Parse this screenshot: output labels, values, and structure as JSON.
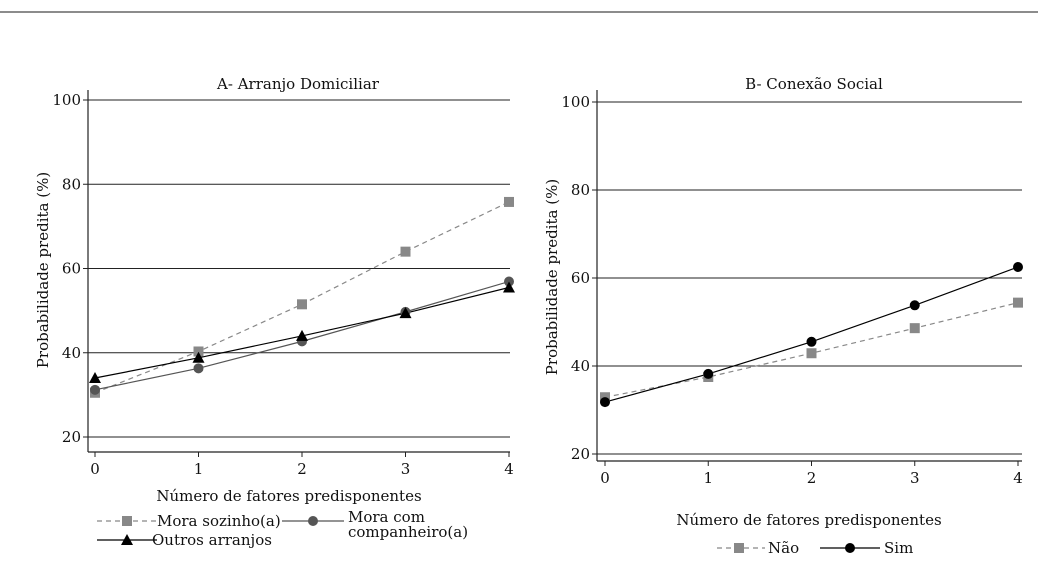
{
  "chart_data": [
    {
      "type": "line",
      "title": "A- Arranjo Domiciliar",
      "xlabel": "Número de fatores predisponentes",
      "ylabel": "Probabilidade predita (%)",
      "x": [
        0,
        1,
        2,
        3,
        4
      ],
      "xticks": [
        "0",
        "1",
        "2",
        "3",
        "4"
      ],
      "yticks": [
        "20",
        "40",
        "60",
        "80",
        "100"
      ],
      "ylim": [
        18,
        101
      ],
      "grid": true,
      "series": [
        {
          "name": "Mora sozinho(a)",
          "values": [
            30.5,
            40.3,
            51.5,
            64.0,
            75.8
          ],
          "marker": "square",
          "dash": "dashed",
          "color": "#888888"
        },
        {
          "name": "Mora com companheiro(a)",
          "values": [
            31.2,
            36.3,
            42.7,
            49.7,
            56.9
          ],
          "marker": "circle",
          "dash": "solid",
          "color": "#555555"
        },
        {
          "name": "Outros arranjos",
          "values": [
            34.0,
            38.8,
            44.0,
            49.4,
            55.5
          ],
          "marker": "triangle",
          "dash": "solid",
          "color": "#000000"
        }
      ]
    },
    {
      "type": "line",
      "title": "B- Conexão Social",
      "xlabel": "Número de fatores predisponentes",
      "ylabel": "Probabilidade predita (%)",
      "x": [
        0,
        1,
        2,
        3,
        4
      ],
      "xticks": [
        "0",
        "1",
        "2",
        "3",
        "4"
      ],
      "yticks": [
        "20",
        "40",
        "60",
        "80",
        "100"
      ],
      "ylim": [
        18,
        101
      ],
      "grid": true,
      "series": [
        {
          "name": "Não",
          "values": [
            32.9,
            37.5,
            42.9,
            48.6,
            54.4
          ],
          "marker": "square",
          "dash": "dashed",
          "color": "#888888"
        },
        {
          "name": "Sim",
          "values": [
            31.8,
            38.2,
            45.5,
            53.8,
            62.5
          ],
          "marker": "circle",
          "dash": "solid",
          "color": "#000000"
        }
      ]
    }
  ]
}
